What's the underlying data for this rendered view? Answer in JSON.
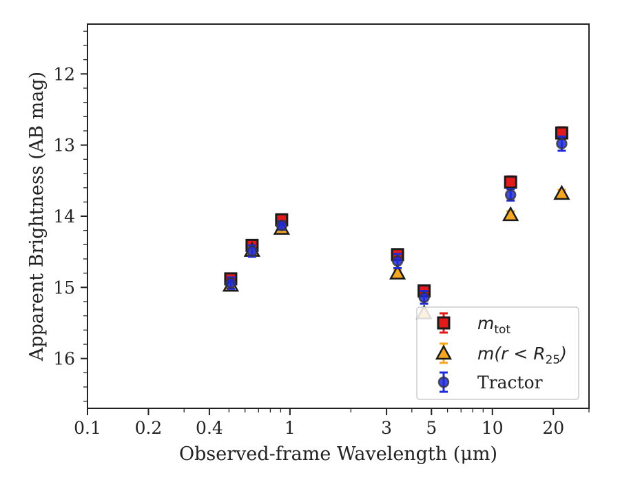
{
  "chart_data": {
    "type": "scatter",
    "title": "",
    "xlabel": "Observed-frame Wavelength (μm)",
    "ylabel": "Apparent Brightness (AB mag)",
    "x_scale": "log",
    "xlim": [
      0.1,
      30
    ],
    "ylim": [
      16.7,
      11.3
    ],
    "y_inverted": true,
    "x_ticks": [
      0.1,
      0.2,
      0.4,
      1,
      3,
      5,
      10,
      20
    ],
    "x_tick_labels": [
      "0.1",
      "0.2",
      "0.4",
      "1",
      "3",
      "5",
      "10",
      "20"
    ],
    "y_ticks": [
      12,
      13,
      14,
      15,
      16
    ],
    "y_tick_labels": [
      "12",
      "13",
      "14",
      "15",
      "16"
    ],
    "grid": false,
    "legend_position": "lower-right",
    "series": [
      {
        "name": "m_tot",
        "legend_base": "m",
        "legend_sub": "tot",
        "marker": "square",
        "color": "#e31a1c",
        "edge_color": "#1a1a1a",
        "x": [
          0.51,
          0.65,
          0.91,
          3.4,
          4.6,
          12.3,
          22.0
        ],
        "y": [
          14.88,
          14.41,
          14.05,
          14.54,
          15.05,
          13.52,
          12.83
        ],
        "yerr": [
          0.06,
          0.06,
          0.06,
          0.07,
          0.07,
          0.08,
          0.08
        ]
      },
      {
        "name": "m(r < R25)",
        "legend_base": "m(r < R",
        "legend_sub": "25",
        "legend_tail": ")",
        "marker": "triangle",
        "color": "#f5a623",
        "edge_color": "#1a1a1a",
        "x": [
          0.51,
          0.65,
          0.91,
          3.4,
          4.6,
          12.3,
          22.0
        ],
        "y": [
          14.97,
          14.48,
          14.17,
          14.8,
          15.36,
          13.98,
          13.68
        ],
        "yerr": [
          0.04,
          0.04,
          0.04,
          0.05,
          0.05,
          0.05,
          0.05
        ]
      },
      {
        "name": "Tractor",
        "legend_base": "Tractor",
        "marker": "circle",
        "color": "#1f2bd6",
        "edge_color": "#333333",
        "x": [
          0.51,
          0.65,
          0.91,
          3.4,
          4.6,
          12.3,
          22.0
        ],
        "y": [
          14.94,
          14.49,
          14.13,
          14.63,
          15.14,
          13.7,
          12.98
        ],
        "yerr": [
          0.08,
          0.08,
          0.06,
          0.1,
          0.09,
          0.08,
          0.1
        ]
      }
    ]
  }
}
